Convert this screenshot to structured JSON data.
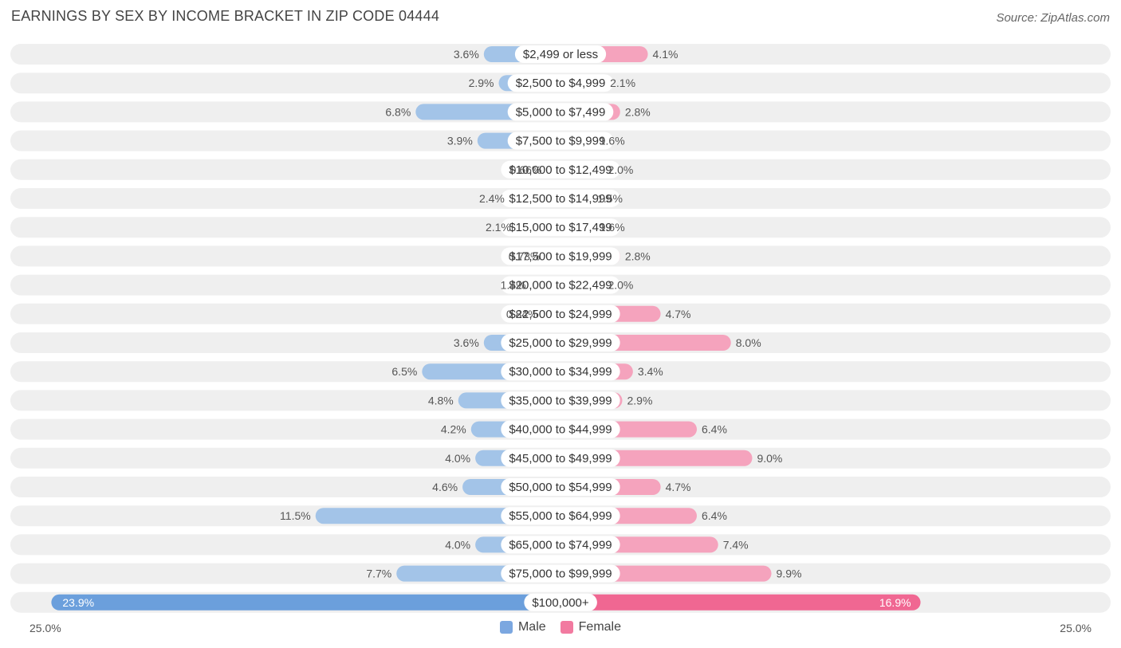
{
  "title": "EARNINGS BY SEX BY INCOME BRACKET IN ZIP CODE 04444",
  "source": "Source: ZipAtlas.com",
  "colors": {
    "male": "#a3c4e8",
    "male_strong": "#6b9fdc",
    "female": "#f5a3bd",
    "female_strong": "#f06792",
    "row_bg": "#efefef"
  },
  "chart_data": {
    "type": "bar",
    "orientation": "horizontal-diverging",
    "title": "EARNINGS BY SEX BY INCOME BRACKET IN ZIP CODE 04444",
    "axis_max": 25.0,
    "axis_left_label": "25.0%",
    "axis_right_label": "25.0%",
    "legend": [
      {
        "name": "Male",
        "color": "#7ba7e0"
      },
      {
        "name": "Female",
        "color": "#f27aa0"
      }
    ],
    "categories": [
      "$2,499 or less",
      "$2,500 to $4,999",
      "$5,000 to $7,499",
      "$7,500 to $9,999",
      "$10,000 to $12,499",
      "$12,500 to $14,999",
      "$15,000 to $17,499",
      "$17,500 to $19,999",
      "$20,000 to $22,499",
      "$22,500 to $24,999",
      "$25,000 to $29,999",
      "$30,000 to $34,999",
      "$35,000 to $39,999",
      "$40,000 to $44,999",
      "$45,000 to $49,999",
      "$50,000 to $54,999",
      "$55,000 to $64,999",
      "$65,000 to $74,999",
      "$75,000 to $99,999",
      "$100,000+"
    ],
    "series": [
      {
        "name": "Male",
        "values": [
          3.6,
          2.9,
          6.8,
          3.9,
          0.66,
          2.4,
          2.1,
          0.73,
          1.4,
          0.84,
          3.6,
          6.5,
          4.8,
          4.2,
          4.0,
          4.6,
          11.5,
          4.0,
          7.7,
          23.9
        ],
        "labels": [
          "3.6%",
          "2.9%",
          "6.8%",
          "3.9%",
          "0.66%",
          "2.4%",
          "2.1%",
          "0.73%",
          "1.4%",
          "0.84%",
          "3.6%",
          "6.5%",
          "4.8%",
          "4.2%",
          "4.0%",
          "4.6%",
          "11.5%",
          "4.0%",
          "7.7%",
          "23.9%"
        ]
      },
      {
        "name": "Female",
        "values": [
          4.1,
          2.1,
          2.8,
          1.6,
          2.0,
          1.5,
          1.6,
          2.8,
          2.0,
          4.7,
          8.0,
          3.4,
          2.9,
          6.4,
          9.0,
          4.7,
          6.4,
          7.4,
          9.9,
          16.9
        ],
        "labels": [
          "4.1%",
          "2.1%",
          "2.8%",
          "1.6%",
          "2.0%",
          "1.5%",
          "1.6%",
          "2.8%",
          "2.0%",
          "4.7%",
          "8.0%",
          "3.4%",
          "2.9%",
          "6.4%",
          "9.0%",
          "4.7%",
          "6.4%",
          "7.4%",
          "9.9%",
          "16.9%"
        ]
      }
    ]
  }
}
